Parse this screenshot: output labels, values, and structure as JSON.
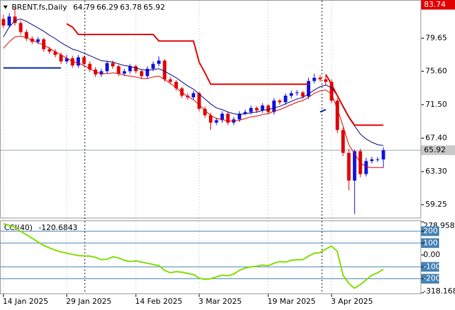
{
  "chart_data": [
    {
      "type": "candlestick",
      "title": "BRENT.fs,Daily",
      "categories": [
        "14 Jan 2025",
        null,
        null,
        null,
        null,
        null,
        null,
        null,
        null,
        null,
        null,
        "29 Jan 2025",
        null,
        null,
        null,
        null,
        null,
        null,
        null,
        null,
        null,
        null,
        null,
        "14 Feb 2025",
        null,
        null,
        null,
        null,
        null,
        null,
        null,
        null,
        null,
        null,
        "3 Mar 2025",
        null,
        null,
        null,
        null,
        null,
        null,
        null,
        null,
        null,
        null,
        null,
        "19 Mar 2025",
        null,
        null,
        null,
        null,
        null,
        null,
        null,
        null,
        null,
        null,
        "3 Apr 2025",
        null,
        null,
        null,
        null,
        null,
        null,
        null,
        null,
        null
      ],
      "open": [
        82.0,
        81.2,
        82.3,
        81.5,
        80.4,
        79.6,
        79.2,
        79.5,
        78.3,
        78.0,
        77.6,
        76.8,
        77.2,
        76.3,
        77.3,
        76.5,
        75.8,
        75.2,
        75.6,
        76.6,
        76.2,
        75.3,
        75.6,
        76.2,
        75.6,
        75.0,
        75.9,
        76.5,
        76.9,
        74.6,
        74.3,
        73.5,
        72.6,
        72.4,
        72.9,
        71.0,
        70.2,
        69.3,
        69.6,
        70.4,
        69.3,
        69.7,
        70.4,
        70.6,
        71.1,
        70.8,
        71.4,
        70.6,
        72.0,
        71.8,
        72.6,
        72.9,
        73.0,
        72.5,
        74.4,
        74.8,
        74.6,
        74.3,
        72.0,
        68.4,
        65.6,
        62.2,
        65.8,
        63.0,
        64.6,
        64.8,
        64.79
      ],
      "high": [
        82.5,
        82.7,
        83.4,
        81.8,
        80.7,
        79.9,
        79.8,
        79.7,
        78.6,
        78.3,
        77.9,
        77.6,
        77.5,
        77.6,
        77.5,
        76.8,
        76.1,
        75.9,
        76.9,
        76.9,
        76.4,
        75.9,
        76.5,
        76.4,
        75.8,
        76.2,
        76.8,
        77.4,
        77.1,
        74.9,
        74.5,
        73.7,
        72.9,
        73.2,
        73.1,
        71.3,
        70.5,
        69.9,
        70.7,
        70.6,
        70.0,
        70.7,
        70.9,
        71.4,
        71.3,
        71.7,
        71.6,
        72.3,
        72.2,
        72.9,
        73.2,
        73.3,
        73.2,
        74.8,
        75.3,
        75.1,
        75.2,
        74.6,
        72.3,
        68.7,
        66.1,
        66.0,
        66.1,
        65.0,
        65.1,
        65.1,
        66.29
      ],
      "low": [
        80.9,
        80.9,
        81.2,
        80.1,
        79.3,
        78.9,
        78.9,
        78.0,
        77.7,
        77.3,
        76.5,
        76.5,
        76.0,
        76.0,
        76.2,
        75.5,
        74.9,
        74.9,
        75.3,
        75.9,
        75.0,
        75.0,
        75.3,
        75.3,
        74.7,
        74.7,
        75.6,
        76.2,
        74.3,
        74.0,
        73.2,
        72.3,
        72.1,
        72.1,
        70.7,
        69.9,
        68.4,
        69.0,
        69.3,
        69.0,
        69.0,
        69.4,
        70.2,
        70.3,
        70.5,
        70.5,
        70.3,
        70.3,
        71.5,
        71.5,
        72.3,
        72.6,
        72.2,
        72.2,
        74.1,
        74.3,
        73.9,
        71.7,
        68.0,
        65.2,
        61.0,
        58.1,
        62.6,
        62.7,
        64.3,
        64.5,
        63.78
      ],
      "close": [
        81.2,
        82.3,
        81.5,
        80.4,
        79.6,
        79.2,
        79.5,
        78.3,
        78.0,
        77.6,
        76.8,
        77.2,
        76.3,
        77.3,
        76.5,
        75.8,
        75.2,
        75.6,
        76.6,
        76.2,
        75.3,
        75.6,
        76.2,
        75.6,
        75.0,
        75.9,
        76.5,
        76.9,
        74.6,
        74.3,
        73.5,
        72.6,
        72.4,
        72.9,
        71.0,
        70.2,
        69.3,
        69.6,
        70.4,
        69.3,
        69.7,
        70.4,
        70.6,
        71.1,
        70.8,
        71.4,
        70.6,
        72.0,
        71.8,
        72.6,
        72.9,
        73.0,
        72.5,
        74.4,
        74.8,
        74.6,
        74.3,
        72.0,
        68.4,
        65.6,
        62.2,
        65.8,
        63.0,
        64.6,
        64.8,
        64.8,
        65.92
      ],
      "up_color": "#1010e0",
      "down_color": "#e00000",
      "overlays": [
        {
          "color": "#000080",
          "width": 1,
          "values": [
            79.8,
            81.0,
            81.8,
            82.0,
            81.7,
            81.3,
            80.9,
            80.5,
            80.0,
            79.6,
            79.1,
            78.7,
            78.3,
            78.1,
            77.8,
            77.5,
            77.2,
            76.9,
            76.8,
            76.7,
            76.5,
            76.3,
            76.2,
            76.0,
            75.8,
            75.7,
            75.8,
            75.9,
            75.6,
            75.2,
            74.8,
            74.3,
            73.8,
            73.4,
            72.8,
            72.2,
            71.6,
            71.1,
            70.9,
            70.6,
            70.4,
            70.3,
            70.4,
            70.5,
            70.6,
            70.8,
            70.9,
            71.1,
            71.3,
            71.6,
            71.9,
            72.2,
            72.4,
            72.8,
            73.3,
            73.7,
            73.9,
            73.6,
            72.6,
            71.2,
            69.9,
            68.9,
            67.9,
            67.3,
            66.9,
            66.6,
            66.5
          ]
        },
        {
          "color": "#e00000",
          "width": 1,
          "values": [
            78.4,
            79.2,
            79.8,
            79.9,
            79.7,
            79.4,
            79.1,
            78.8,
            78.4,
            78.0,
            77.6,
            77.2,
            76.8,
            76.6,
            76.3,
            75.9,
            75.5,
            75.3,
            75.3,
            75.4,
            75.3,
            75.1,
            75.0,
            74.9,
            74.7,
            74.7,
            74.9,
            75.0,
            74.6,
            74.1,
            73.6,
            73.0,
            72.5,
            72.1,
            71.5,
            70.8,
            70.2,
            69.8,
            69.7,
            69.5,
            69.5,
            69.6,
            69.8,
            70.0,
            70.1,
            70.3,
            70.4,
            70.7,
            70.9,
            71.2,
            71.5,
            71.8,
            72.0,
            72.4,
            72.9,
            73.2,
            73.3,
            72.8,
            71.0,
            68.9,
            66.6,
            65.5,
            64.4,
            63.9,
            63.8,
            63.8,
            63.8
          ]
        },
        {
          "color": "#e00000",
          "width": 2,
          "values": [
            null,
            null,
            null,
            null,
            null,
            null,
            null,
            null,
            null,
            null,
            null,
            81.4,
            81.0,
            80.1,
            80.1,
            80.1,
            80.1,
            80.1,
            80.1,
            80.1,
            80.1,
            80.1,
            80.1,
            80.1,
            80.1,
            80.1,
            80.1,
            79.3,
            79.3,
            79.3,
            79.3,
            79.3,
            79.3,
            79.3,
            76.7,
            75.4,
            74.0,
            74.0,
            74.0,
            74.0,
            74.0,
            74.0,
            74.0,
            74.0,
            74.0,
            74.0,
            74.0,
            74.0,
            74.0,
            74.0,
            74.0,
            74.0,
            74.0,
            74.0,
            null,
            null,
            75.2,
            74.0,
            72.6,
            71.3,
            70.0,
            69.0,
            69.0,
            69.0,
            69.0,
            69.0,
            69.0
          ]
        },
        {
          "color": "#0020b0",
          "width": 2,
          "values": [
            76.0,
            76.0,
            76.0,
            76.0,
            76.0,
            76.0,
            76.0,
            76.0,
            76.0,
            76.0,
            76.0,
            null,
            null,
            null,
            null,
            null,
            null,
            null,
            null,
            null,
            null,
            null,
            null,
            null,
            null,
            null,
            null,
            null,
            null,
            null,
            null,
            null,
            null,
            null,
            null,
            null,
            null,
            null,
            null,
            null,
            null,
            null,
            null,
            null,
            null,
            null,
            null,
            null,
            null,
            null,
            null,
            null,
            null,
            null,
            null,
            70.6,
            70.9,
            null,
            null,
            null,
            null,
            null,
            null,
            null,
            null,
            null,
            null
          ]
        }
      ],
      "ylim": [
        57.7,
        83.9
      ],
      "yticks": [
        {
          "value": 79.65,
          "label": "79.65"
        },
        {
          "value": 75.6,
          "label": "75.60"
        },
        {
          "value": 71.5,
          "label": "71.50"
        },
        {
          "value": 67.4,
          "label": "67.40"
        },
        {
          "value": 63.3,
          "label": "63.30"
        },
        59.25
      ],
      "top_price": 83.74
    },
    {
      "type": "line",
      "title": "CCI(40)",
      "color": "#80dd00",
      "values": [
        262,
        250,
        232,
        200,
        170,
        140,
        110,
        80,
        60,
        40,
        25,
        15,
        5,
        -5,
        -8,
        -10,
        -20,
        -40,
        -35,
        -15,
        -25,
        -45,
        -55,
        -50,
        -60,
        -70,
        -80,
        -90,
        -130,
        -150,
        -140,
        -145,
        -155,
        -165,
        -195,
        -205,
        -200,
        -185,
        -170,
        -175,
        -160,
        -130,
        -110,
        -100,
        -95,
        -85,
        -90,
        -70,
        -55,
        -60,
        -45,
        -40,
        -40,
        -10,
        15,
        20,
        50,
        75,
        30,
        -170,
        -240,
        -280,
        -250,
        -210,
        -170,
        -150,
        -120.6843
      ],
      "ylim": [
        -318.168,
        278.958
      ],
      "yticks": [
        278.958,
        200,
        100,
        {
          "value": 0,
          "label": "0.00"
        },
        -100,
        -200,
        -318.168
      ],
      "level_color": "#4682b4"
    }
  ]
}
